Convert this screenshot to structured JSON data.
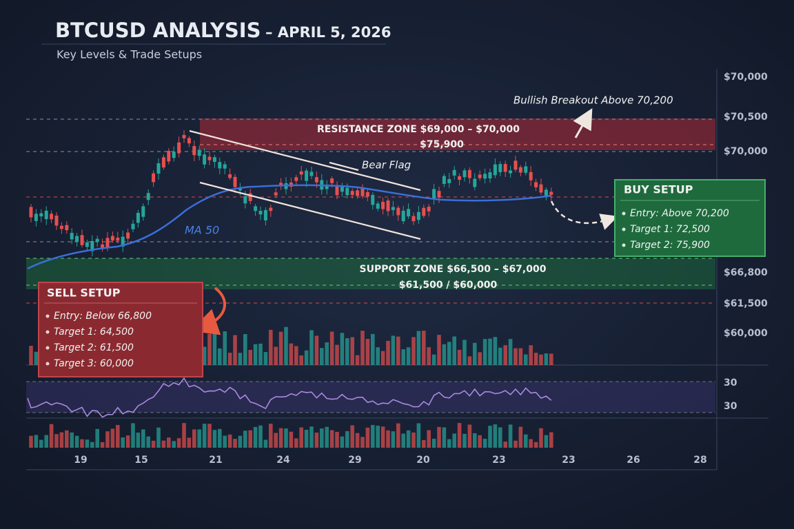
{
  "header": {
    "title": "BTCUSD ANALYSIS",
    "date": "– APRIL 5, 2026",
    "subtitle": "Key Levels & Trade Setups"
  },
  "price_labels": [
    "$70,000",
    "$70,500",
    "$70,000",
    "$66,800",
    "$61,500",
    "$60,000"
  ],
  "rsi_labels": [
    "30",
    "30"
  ],
  "date_labels": [
    "19",
    "15",
    "21",
    "24",
    "29",
    "20",
    "23",
    "23",
    "26",
    "28"
  ],
  "annotations": {
    "resistance": "RESISTANCE ZONE  $69,000 – $70,000",
    "resistance_sub": "$75,900",
    "support": "SUPPORT ZONE  $66,500 – $67,000",
    "support_sub": "$61,500 / $60,000",
    "bear_flag": "Bear Flag",
    "ma": "MA 50",
    "breakout": "Bullish Breakout Above 70,200"
  },
  "buy_setup": {
    "title": "BUY SETUP",
    "items": [
      "Entry: Above 70,200",
      "Target 1:  72,500",
      "Target 2:  75,900"
    ]
  },
  "sell_setup": {
    "title": "SELL SETUP",
    "items": [
      "Entry: Below 66,800",
      "Target 1: 64,500",
      "Target 2: 61,500",
      "Target 3: 60,000"
    ]
  }
}
